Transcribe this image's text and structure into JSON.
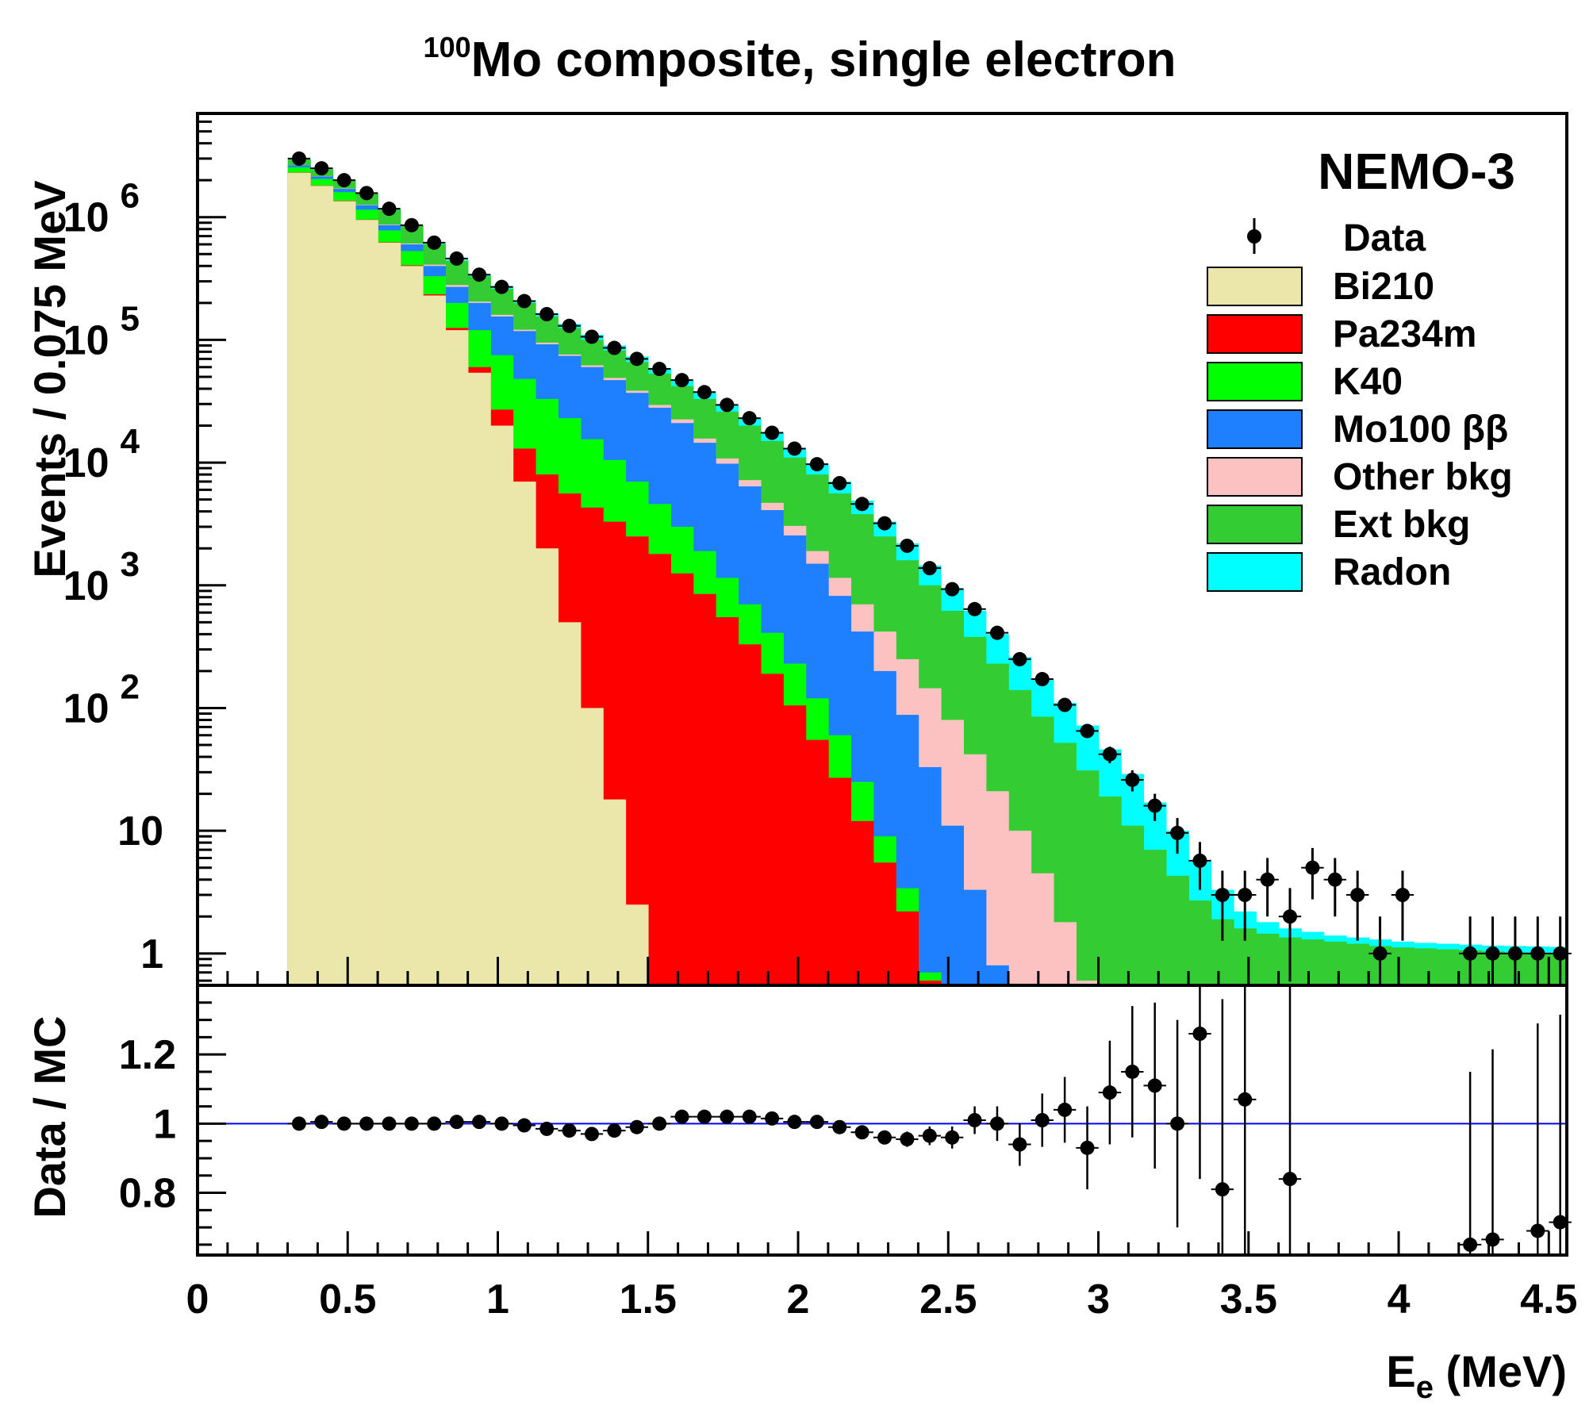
{
  "colors": {
    "Bi210": "#ebe6a9",
    "Pa234m": "#ff0000",
    "K40": "#00ff00",
    "Mo100": "#1f80ff",
    "Other": "#fcc2c2",
    "Ext": "#33cc33",
    "Radon": "#00ffff",
    "data": "#000000",
    "ratio_line": "#0000ff"
  },
  "chart_data": [
    {
      "type": "bar",
      "stacked": true,
      "yscale": "log",
      "title_sup": "100",
      "title_main": "Mo composite, single electron",
      "annotation": "NEMO-3",
      "ylabel": "Events / 0.075 MeV",
      "xlim": [
        0,
        4.56
      ],
      "ylim": [
        0.55,
        7000000
      ],
      "bin_width": 0.075,
      "y_ticks": [
        {
          "value": 1000000,
          "base": "10",
          "exp": "6"
        },
        {
          "value": 100000,
          "base": "10",
          "exp": "5"
        },
        {
          "value": 10000,
          "base": "10",
          "exp": "4"
        },
        {
          "value": 1000,
          "base": "10",
          "exp": "3"
        },
        {
          "value": 100,
          "base": "10",
          "exp": "2"
        },
        {
          "value": 10,
          "base": "10",
          "exp": ""
        },
        {
          "value": 1,
          "base": "1",
          "exp": ""
        }
      ],
      "legend": {
        "data_label": "Data",
        "entries": [
          {
            "key": "Bi210",
            "label": "Bi210"
          },
          {
            "key": "Pa234m",
            "label": "Pa234m"
          },
          {
            "key": "K40",
            "label": "K40"
          },
          {
            "key": "Mo100",
            "label": "Mo100 ββ"
          },
          {
            "key": "Other",
            "label": "Other bkg"
          },
          {
            "key": "Ext",
            "label": "Ext bkg"
          },
          {
            "key": "Radon",
            "label": "Radon"
          }
        ]
      },
      "stack_top": {
        "bin_centers": [
          0.338,
          0.413,
          0.488,
          0.563,
          0.638,
          0.713,
          0.788,
          0.863,
          0.938,
          1.013,
          1.088,
          1.163,
          1.238,
          1.313,
          1.388,
          1.463,
          1.538,
          1.613,
          1.688,
          1.763,
          1.838,
          1.913,
          1.988,
          2.063,
          2.138,
          2.213,
          2.288,
          2.363,
          2.438,
          2.513,
          2.588,
          2.663,
          2.738,
          2.813,
          2.888,
          2.963,
          3.038,
          3.113,
          3.188,
          3.263,
          3.338,
          3.413,
          3.488,
          3.563,
          3.638,
          3.713,
          3.788,
          3.863,
          3.938,
          4.013,
          4.088,
          4.163,
          4.238,
          4.313,
          4.388,
          4.463,
          4.525
        ],
        "Bi210": [
          2300000,
          1800000,
          1350000,
          950000,
          620000,
          400000,
          230000,
          120000,
          54000,
          20000,
          7000,
          2000,
          500,
          100,
          18,
          2.5,
          0,
          0,
          0,
          0,
          0,
          0,
          0,
          0,
          0,
          0,
          0,
          0,
          0,
          0,
          0,
          0,
          0,
          0,
          0,
          0,
          0,
          0,
          0,
          0,
          0,
          0,
          0,
          0,
          0,
          0,
          0,
          0,
          0,
          0,
          0,
          0,
          0,
          0,
          0,
          0,
          0
        ],
        "Pa234m": [
          2310000,
          1810000,
          1360000,
          955000,
          625000,
          405000,
          235000,
          125000,
          60000,
          27000,
          13000,
          8000,
          5600,
          4300,
          3300,
          2500,
          1800,
          1250,
          850,
          550,
          330,
          190,
          105,
          55,
          27,
          12,
          5.5,
          2.2,
          0.6,
          0,
          0,
          0,
          0,
          0,
          0,
          0,
          0,
          0,
          0,
          0,
          0,
          0,
          0,
          0,
          0,
          0,
          0,
          0,
          0,
          0,
          0,
          0,
          0,
          0,
          0,
          0,
          0
        ],
        "K40": [
          2550000,
          2050000,
          1600000,
          1150000,
          780000,
          530000,
          330000,
          200000,
          120000,
          75000,
          48000,
          33000,
          23000,
          15500,
          10500,
          7000,
          4600,
          3000,
          1900,
          1150,
          700,
          410,
          230,
          120,
          60,
          25,
          9,
          3.4,
          0.7,
          0,
          0,
          0,
          0,
          0,
          0,
          0,
          0,
          0,
          0,
          0,
          0,
          0,
          0,
          0,
          0,
          0,
          0,
          0,
          0,
          0,
          0,
          0,
          0,
          0,
          0,
          0,
          0
        ],
        "Mo100": [
          2650000,
          2150000,
          1700000,
          1250000,
          860000,
          600000,
          400000,
          270000,
          200000,
          155000,
          118000,
          92000,
          74000,
          60000,
          47000,
          37000,
          28000,
          21000,
          14500,
          9800,
          6400,
          4100,
          2550,
          1500,
          820,
          420,
          200,
          88,
          33,
          11,
          3.3,
          0.8,
          0,
          0,
          0,
          0,
          0,
          0,
          0,
          0,
          0,
          0,
          0,
          0,
          0,
          0,
          0,
          0,
          0,
          0,
          0,
          0,
          0,
          0,
          0,
          0,
          0
        ],
        "Other": [
          2660000,
          2160000,
          1710000,
          1260000,
          870000,
          610000,
          410000,
          280000,
          205000,
          160000,
          121000,
          95000,
          76000,
          62000,
          49000,
          38500,
          29500,
          22500,
          15700,
          10800,
          7200,
          4700,
          3050,
          1900,
          1150,
          700,
          420,
          250,
          145,
          80,
          42,
          21,
          10,
          4.5,
          1.8,
          0.6,
          0,
          0,
          0,
          0,
          0,
          0,
          0,
          0,
          0,
          0,
          0,
          0,
          0,
          0,
          0,
          0,
          0,
          0,
          0,
          0,
          0
        ],
        "Ext": [
          2950000,
          2450000,
          2000000,
          1560000,
          1150000,
          850000,
          600000,
          440000,
          330000,
          260000,
          200000,
          155000,
          125000,
          100000,
          82000,
          66000,
          53000,
          42000,
          33000,
          26000,
          20000,
          15000,
          11000,
          8000,
          5600,
          3800,
          2500,
          1600,
          1000,
          620,
          380,
          230,
          140,
          85,
          52,
          31,
          19,
          11,
          7,
          4.3,
          2.7,
          1.9,
          1.6,
          1.45,
          1.35,
          1.3,
          1.25,
          1.2,
          1.15,
          1.12,
          1.1,
          1.08,
          1.06,
          1.04,
          1.02,
          1.01,
          1.0
        ],
        "Radon": [
          2960000,
          2460000,
          2010000,
          1570000,
          1160000,
          860000,
          610000,
          450000,
          340000,
          270000,
          210000,
          165000,
          135000,
          110000,
          90000,
          73000,
          59000,
          47000,
          37000,
          29500,
          23000,
          17500,
          13000,
          9600,
          7000,
          4900,
          3300,
          2200,
          1450,
          950,
          620,
          400,
          260,
          170,
          110,
          72,
          46,
          29,
          17,
          10,
          5.6,
          3.3,
          2.2,
          1.8,
          1.6,
          1.5,
          1.4,
          1.35,
          1.3,
          1.25,
          1.22,
          1.2,
          1.18,
          1.16,
          1.15,
          1.14,
          1.13
        ]
      },
      "data_points": {
        "x": [
          0.338,
          0.413,
          0.488,
          0.563,
          0.638,
          0.713,
          0.788,
          0.863,
          0.938,
          1.013,
          1.088,
          1.163,
          1.238,
          1.313,
          1.388,
          1.463,
          1.538,
          1.613,
          1.688,
          1.763,
          1.838,
          1.913,
          1.988,
          2.063,
          2.138,
          2.213,
          2.288,
          2.363,
          2.438,
          2.513,
          2.588,
          2.663,
          2.738,
          2.813,
          2.888,
          2.963,
          3.038,
          3.113,
          3.188,
          3.263,
          3.338,
          3.413,
          3.488,
          3.563,
          3.638,
          3.713,
          3.788,
          3.863,
          3.938,
          4.013,
          4.238,
          4.313,
          4.388,
          4.463,
          4.538
        ],
        "y": [
          3000000,
          2500000,
          2000000,
          1570000,
          1170000,
          860000,
          620000,
          460000,
          340000,
          270000,
          207000,
          162000,
          130000,
          106000,
          86000,
          70000,
          58000,
          47000,
          37500,
          29500,
          23000,
          17500,
          13000,
          9700,
          6800,
          4600,
          3200,
          2100,
          1380,
          930,
          640,
          410,
          250,
          172,
          106,
          65,
          42,
          26,
          16,
          9.6,
          5.7,
          3.0,
          3.0,
          4.0,
          2.0,
          5.0,
          4.0,
          3.0,
          1.0,
          3.0,
          1.0,
          1.0,
          1.0,
          1.0,
          1.0
        ],
        "err": [
          1700,
          1600,
          1400,
          1250,
          1080,
          930,
          790,
          680,
          580,
          520,
          455,
          400,
          360,
          325,
          293,
          265,
          241,
          217,
          194,
          172,
          152,
          132,
          114,
          98,
          82,
          68,
          57,
          46,
          37,
          30,
          25,
          20,
          16,
          13,
          10,
          8,
          6.5,
          5.1,
          4,
          3.1,
          2.4,
          1.73,
          1.73,
          2,
          1.41,
          2.24,
          2,
          1.73,
          1,
          1.73,
          1,
          1,
          1,
          1,
          1
        ]
      }
    },
    {
      "type": "scatter",
      "ylabel": "Data / MC",
      "xlabel_main": "E",
      "xlabel_sub": "e",
      "xlabel_unit": " (MeV)",
      "xlim": [
        0,
        4.56
      ],
      "ylim": [
        0.62,
        1.4
      ],
      "reference_line": 1.0,
      "x_ticks": [
        0,
        0.5,
        1,
        1.5,
        2,
        2.5,
        3,
        3.5,
        4,
        4.5
      ],
      "x_tick_labels": [
        "0",
        "0.5",
        "1",
        "1.5",
        "2",
        "2.5",
        "3",
        "3.5",
        "4",
        "4.5"
      ],
      "y_ticks": [
        0.8,
        1,
        1.2
      ],
      "y_tick_labels": [
        "0.8",
        "1",
        "1.2"
      ],
      "x": [
        0.338,
        0.413,
        0.488,
        0.563,
        0.638,
        0.713,
        0.788,
        0.863,
        0.938,
        1.013,
        1.088,
        1.163,
        1.238,
        1.313,
        1.388,
        1.463,
        1.538,
        1.613,
        1.688,
        1.763,
        1.838,
        1.913,
        1.988,
        2.063,
        2.138,
        2.213,
        2.288,
        2.363,
        2.438,
        2.513,
        2.588,
        2.663,
        2.738,
        2.813,
        2.888,
        2.963,
        3.038,
        3.113,
        3.188,
        3.263,
        3.338,
        3.413,
        3.488,
        3.638,
        4.238,
        4.313,
        4.463,
        4.538
      ],
      "y": [
        1.0,
        1.005,
        1.0,
        1.0,
        1.0,
        1.0,
        1.0,
        1.005,
        1.005,
        1.0,
        0.995,
        0.985,
        0.98,
        0.97,
        0.98,
        0.99,
        1.0,
        1.02,
        1.02,
        1.02,
        1.02,
        1.015,
        1.005,
        1.005,
        0.99,
        0.975,
        0.96,
        0.955,
        0.965,
        0.96,
        1.01,
        1.0,
        0.94,
        1.01,
        1.04,
        0.93,
        1.09,
        1.15,
        1.11,
        1.0,
        1.26,
        0.81,
        1.07,
        0.84,
        0.65,
        0.665,
        0.69,
        0.715
      ],
      "err": [
        0.002,
        0.002,
        0.002,
        0.002,
        0.002,
        0.002,
        0.002,
        0.002,
        0.003,
        0.003,
        0.003,
        0.003,
        0.003,
        0.003,
        0.004,
        0.004,
        0.004,
        0.005,
        0.005,
        0.006,
        0.007,
        0.008,
        0.009,
        0.01,
        0.012,
        0.015,
        0.018,
        0.022,
        0.027,
        0.032,
        0.04,
        0.05,
        0.062,
        0.077,
        0.095,
        0.12,
        0.15,
        0.19,
        0.24,
        0.3,
        0.42,
        0.55,
        0.6,
        0.7,
        0.5,
        0.55,
        0.6,
        0.6
      ]
    }
  ]
}
